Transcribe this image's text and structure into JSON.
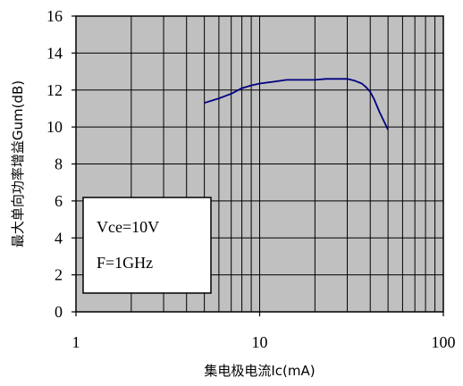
{
  "chart_data": {
    "type": "line",
    "title": "",
    "xlabel": "集电极电流Ic(mA)",
    "ylabel": "最大单向功率增益Gum(dB)",
    "x_scale": "log",
    "xlim": [
      1,
      100
    ],
    "ylim": [
      0,
      16
    ],
    "x_ticks": [
      1,
      10,
      100
    ],
    "x_tick_labels": [
      "1",
      "10",
      "100"
    ],
    "y_ticks": [
      0,
      2,
      4,
      6,
      8,
      10,
      12,
      14,
      16
    ],
    "y_tick_labels": [
      "0",
      "2",
      "4",
      "6",
      "8",
      "10",
      "12",
      "14",
      "16"
    ],
    "grid": true,
    "plot_background": "#c0c0c0",
    "line_color": "#000080",
    "annotation": [
      "Vce=10V",
      "F=1GHz"
    ],
    "series": [
      {
        "x": [
          5,
          6,
          7,
          8,
          9,
          10,
          12,
          14,
          17,
          20,
          23,
          26,
          30,
          33,
          36,
          38,
          40,
          42,
          45,
          50
        ],
        "y": [
          11.3,
          11.55,
          11.8,
          12.1,
          12.25,
          12.35,
          12.45,
          12.55,
          12.55,
          12.55,
          12.6,
          12.6,
          12.6,
          12.5,
          12.35,
          12.15,
          11.9,
          11.5,
          10.8,
          9.85
        ]
      }
    ]
  }
}
